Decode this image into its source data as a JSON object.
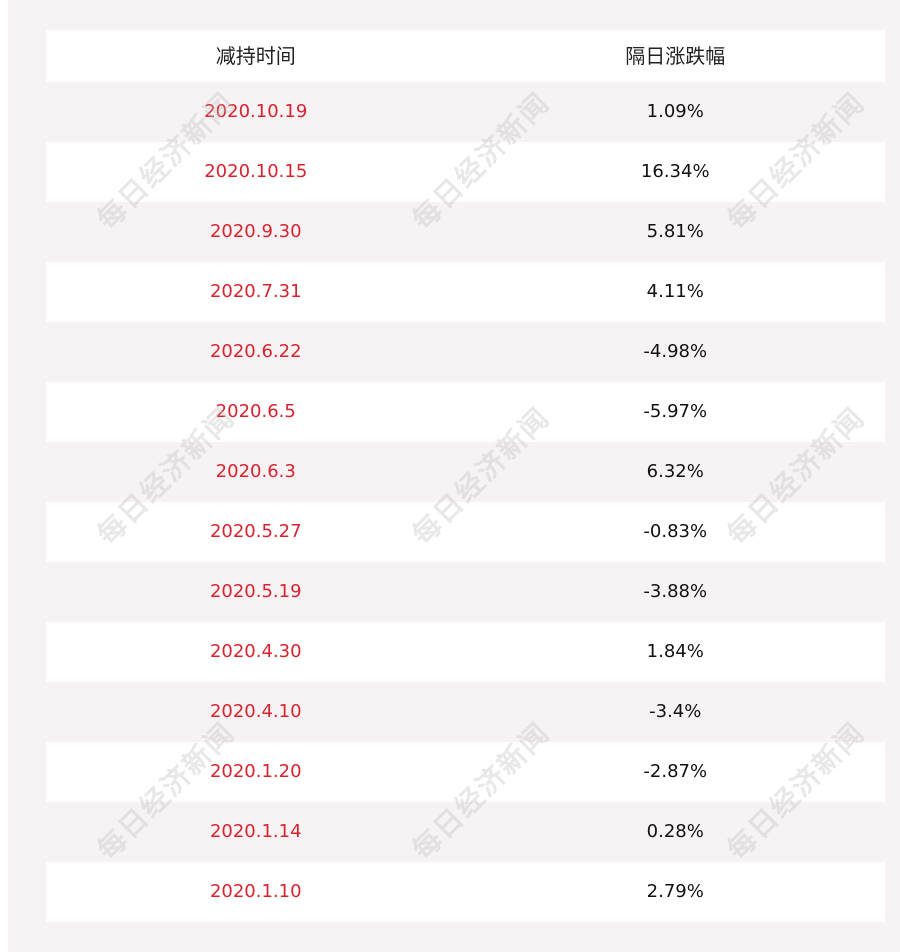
{
  "table": {
    "headers": {
      "date": "减持时间",
      "change": "隔日涨跌幅"
    },
    "rows": [
      {
        "date": "2020.10.19",
        "change": "1.09%"
      },
      {
        "date": "2020.10.15",
        "change": "16.34%"
      },
      {
        "date": "2020.9.30",
        "change": "5.81%"
      },
      {
        "date": "2020.7.31",
        "change": "4.11%"
      },
      {
        "date": "2020.6.22",
        "change": "-4.98%"
      },
      {
        "date": "2020.6.5",
        "change": "-5.97%"
      },
      {
        "date": "2020.6.3",
        "change": "6.32%"
      },
      {
        "date": "2020.5.27",
        "change": "-0.83%"
      },
      {
        "date": "2020.5.19",
        "change": "-3.88%"
      },
      {
        "date": "2020.4.30",
        "change": "1.84%"
      },
      {
        "date": "2020.4.10",
        "change": "-3.4%"
      },
      {
        "date": "2020.1.20",
        "change": "-2.87%"
      },
      {
        "date": "2020.1.14",
        "change": "0.28%"
      },
      {
        "date": "2020.1.10",
        "change": "2.79%"
      }
    ]
  },
  "watermark": {
    "text": "每日经济新闻"
  },
  "colors": {
    "date_text": "#d8232f",
    "change_text": "#111111",
    "panel_bg": "#f7f3f4",
    "row_white": "#ffffff"
  }
}
